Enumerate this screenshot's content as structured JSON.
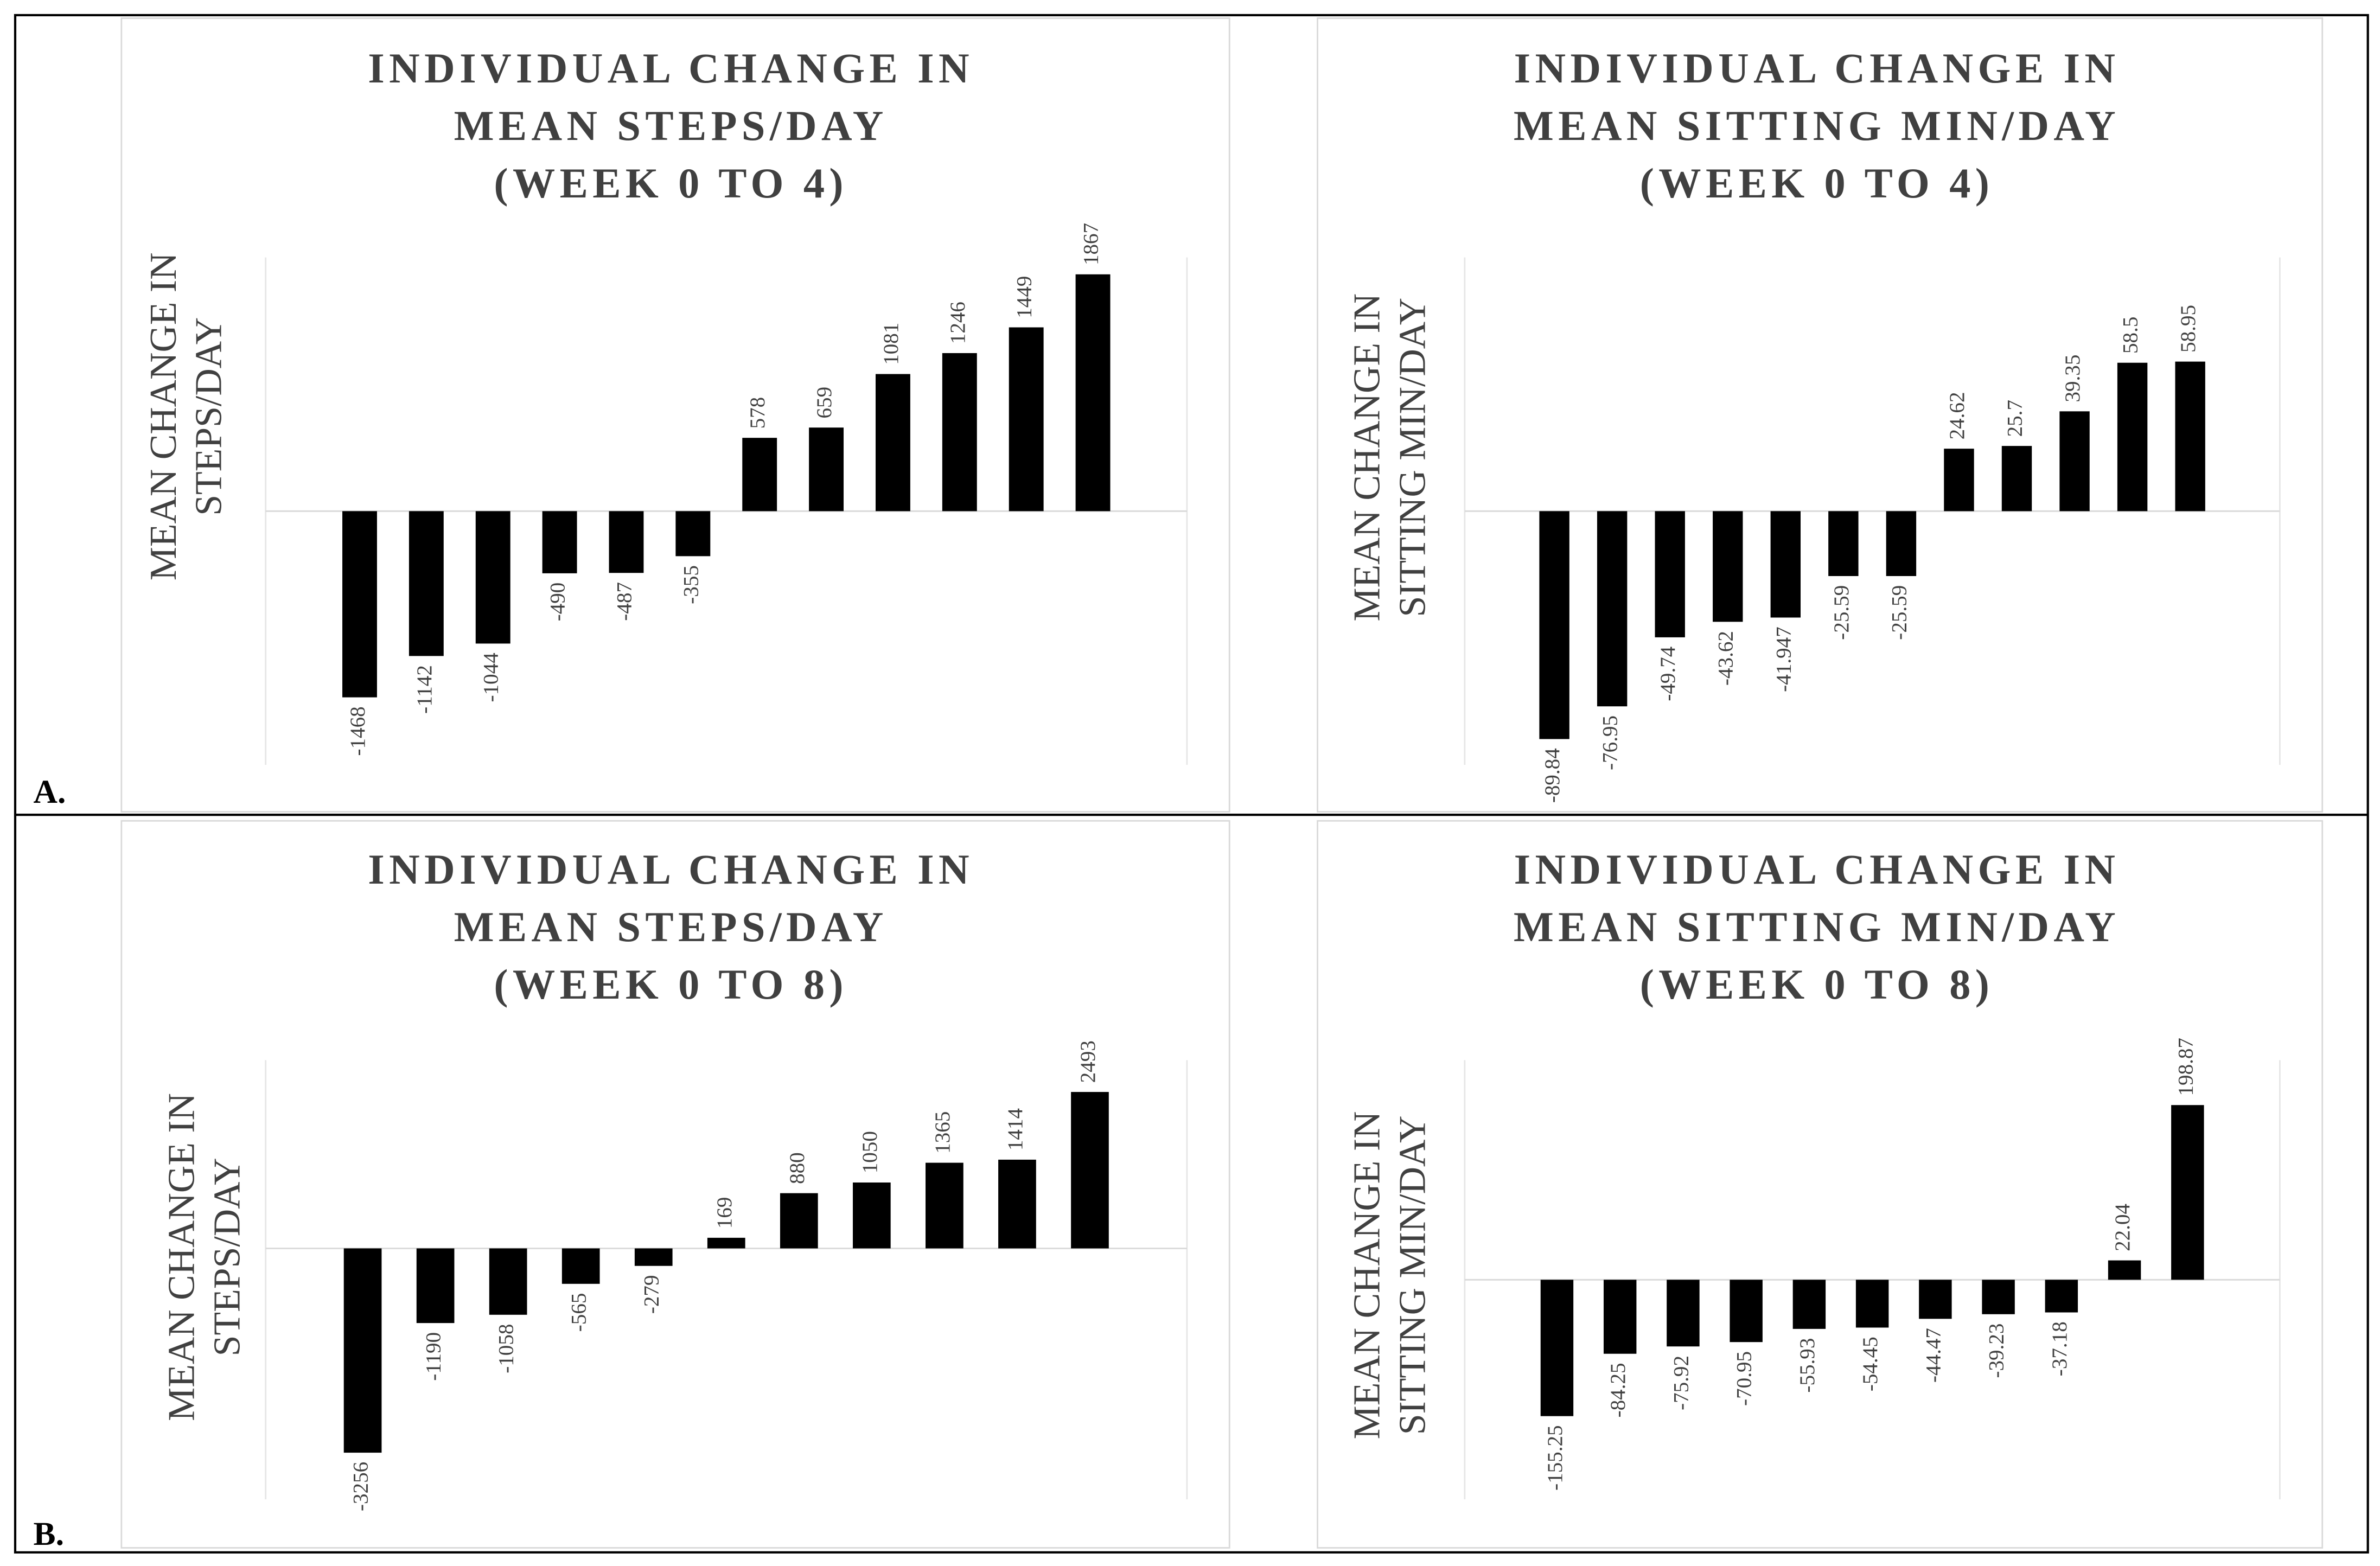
{
  "panel_labels": [
    "A.",
    "B."
  ],
  "chart_data": [
    {
      "type": "bar",
      "title": [
        "INDIVIDUAL CHANGE IN",
        "MEAN STEPS/DAY",
        "(WEEK 0 TO 4)"
      ],
      "y_label": [
        "MEAN CHANGE IN",
        "STEPS/DAY"
      ],
      "color": "#000000",
      "values": [
        -1468,
        -1142,
        -1044,
        -490,
        -487,
        -355,
        578,
        659,
        1081,
        1246,
        1449,
        1867
      ],
      "ylim": [
        -2000,
        2000
      ]
    },
    {
      "type": "bar",
      "title": [
        "INDIVIDUAL CHANGE IN",
        "MEAN SITTING MIN/DAY",
        "(WEEK 0 TO 4)"
      ],
      "y_label": [
        "MEAN CHANGE IN",
        "SITTING MIN/DAY"
      ],
      "color": "#000000",
      "values": [
        -89.84,
        -76.95,
        -49.74,
        -43.62,
        -41.947,
        -25.59,
        -25.59,
        24.62,
        25.7,
        39.35,
        58.5,
        58.95
      ],
      "ylim": [
        -100,
        100
      ]
    },
    {
      "type": "bar",
      "title": [
        "INDIVIDUAL CHANGE IN",
        "MEAN STEPS/DAY",
        "(WEEK 0 TO 8)"
      ],
      "y_label": [
        "MEAN  CHANGE IN",
        "STEPS/DAY"
      ],
      "color": "#000000",
      "values": [
        -3256,
        -1190,
        -1058,
        -565,
        -279,
        169,
        880,
        1050,
        1365,
        1414,
        2493
      ],
      "ylim": [
        -4000,
        3000
      ]
    },
    {
      "type": "bar",
      "title": [
        "INDIVIDUAL CHANGE IN",
        "MEAN SITTING MIN/DAY",
        "(WEEK 0 TO 8)"
      ],
      "y_label": [
        "MEAN CHANGE IN",
        "SITTING MIN/DAY"
      ],
      "color": "#000000",
      "values": [
        -155.25,
        -84.25,
        -75.92,
        -70.95,
        -55.93,
        -54.45,
        -44.47,
        -39.23,
        -37.18,
        22.04,
        198.87
      ],
      "ylim": [
        -250,
        250
      ]
    }
  ]
}
